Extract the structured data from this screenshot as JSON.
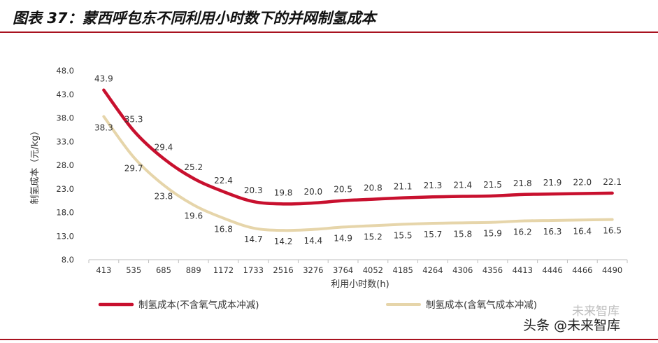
{
  "header": {
    "title": "图表 37：蒙西呼包东不同利用小时数下的并网制氢成本"
  },
  "watermark": {
    "primary": "头条 @未来智库",
    "faint": "未来智库"
  },
  "colors": {
    "series_1": "#c8102e",
    "series_2": "#e6d5aa",
    "rule": "#a8121f"
  },
  "chart_data": {
    "type": "line",
    "title": "图表 37：蒙西呼包东不同利用小时数下的并网制氢成本",
    "xlabel": "利用小时数(h)",
    "ylabel": "制氢成本（元/kg）",
    "categories": [
      "413",
      "535",
      "685",
      "889",
      "1172",
      "1733",
      "2516",
      "3276",
      "3764",
      "4052",
      "4185",
      "4264",
      "4306",
      "4356",
      "4413",
      "4446",
      "4466",
      "4490"
    ],
    "yticks": [
      "48.0",
      "43.0",
      "38.0",
      "33.0",
      "28.0",
      "23.0",
      "18.0",
      "13.0",
      "8.0"
    ],
    "ylim": [
      8.0,
      48.0
    ],
    "grid": false,
    "legend_position": "bottom",
    "series": [
      {
        "name": "制氢成本(不含氧气成本冲减)",
        "color": "#c8102e",
        "values": [
          43.9,
          35.3,
          29.4,
          25.2,
          22.4,
          20.3,
          19.8,
          20.0,
          20.5,
          20.8,
          21.1,
          21.3,
          21.4,
          21.5,
          21.8,
          21.9,
          22.0,
          22.1
        ],
        "labels": [
          "43.9",
          "35.3",
          "29.4",
          "25.2",
          "22.4",
          "20.3",
          "19.8",
          "20.0",
          "20.5",
          "20.8",
          "21.1",
          "21.3",
          "21.4",
          "21.5",
          "21.8",
          "21.9",
          "22.0",
          "22.1"
        ]
      },
      {
        "name": "制氢成本(含氧气成本冲减)",
        "color": "#e6d5aa",
        "values": [
          38.3,
          29.7,
          23.8,
          19.6,
          16.8,
          14.7,
          14.2,
          14.4,
          14.9,
          15.2,
          15.5,
          15.7,
          15.8,
          15.9,
          16.2,
          16.3,
          16.4,
          16.5
        ],
        "labels": [
          "38.3",
          "29.7",
          "23.8",
          "19.6",
          "16.8",
          "14.7",
          "14.2",
          "14.4",
          "14.9",
          "15.2",
          "15.5",
          "15.7",
          "15.8",
          "15.9",
          "16.2",
          "16.3",
          "16.4",
          "16.5"
        ]
      }
    ]
  }
}
